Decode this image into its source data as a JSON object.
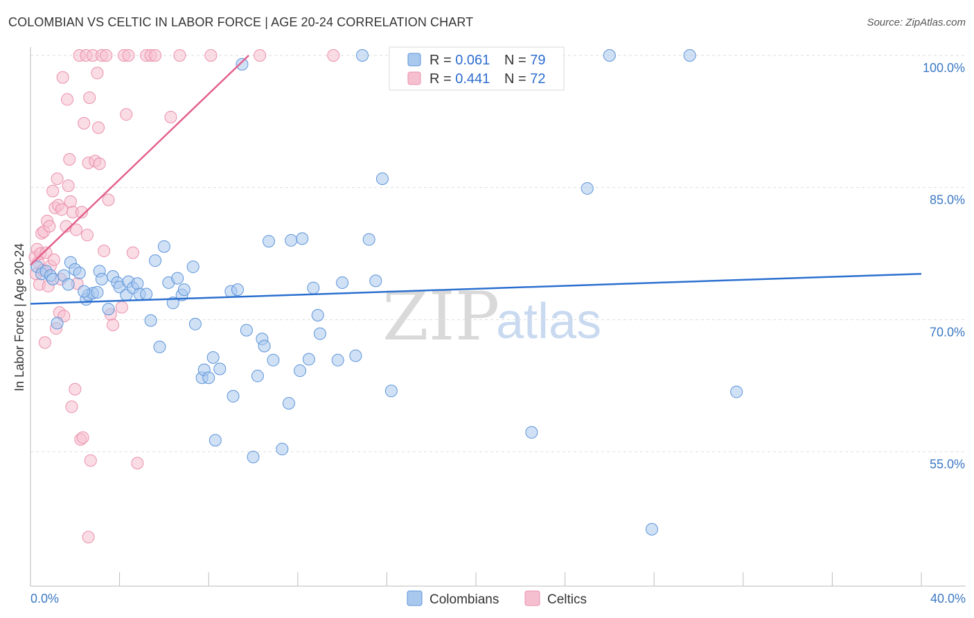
{
  "title": "COLOMBIAN VS CELTIC IN LABOR FORCE | AGE 20-24 CORRELATION CHART",
  "source": "Source: ZipAtlas.com",
  "watermark": {
    "zip": "ZIP",
    "atlas": "atlas"
  },
  "colors": {
    "blue_fill": "#a9c8ee",
    "blue_stroke": "#5b93d8",
    "blue_line": "#2a6fcf",
    "pink_fill": "#f6bfd0",
    "pink_stroke": "#ea8fac",
    "pink_line": "#e2608c",
    "grid": "#dddddd",
    "axis_text": "#3b78c4"
  },
  "legend": {
    "rows": [
      {
        "r_label": "R = ",
        "r_value": "0.061",
        "n_label": "N = ",
        "n_value": "79"
      },
      {
        "r_label": "R = ",
        "r_value": "0.441",
        "n_label": "N = ",
        "n_value": "72"
      }
    ]
  },
  "bottom_legend": [
    "Colombians",
    "Celtics"
  ],
  "chart_data": {
    "type": "scatter",
    "title": "COLOMBIAN VS CELTIC IN LABOR FORCE | AGE 20-24 CORRELATION CHART",
    "xlabel": "",
    "ylabel": "In Labor Force | Age 20-24",
    "xlim": [
      0,
      40
    ],
    "ylim": [
      40,
      102
    ],
    "x_ticks": [
      "0.0%",
      "40.0%"
    ],
    "y_ticks": [
      {
        "value": 100,
        "label": "100.0%"
      },
      {
        "value": 85,
        "label": "85.0%"
      },
      {
        "value": 70,
        "label": "70.0%"
      },
      {
        "value": 55,
        "label": "55.0%"
      }
    ],
    "series": [
      {
        "name": "Colombians",
        "R": 0.061,
        "N": 79,
        "trend": {
          "x": [
            0,
            40
          ],
          "y": [
            71.8,
            75.2
          ]
        },
        "points": [
          [
            0.3,
            76.0
          ],
          [
            0.5,
            75.2
          ],
          [
            0.7,
            75.5
          ],
          [
            0.9,
            75.0
          ],
          [
            1.0,
            74.6
          ],
          [
            1.5,
            75.0
          ],
          [
            1.7,
            74.0
          ],
          [
            1.8,
            76.5
          ],
          [
            2.0,
            75.7
          ],
          [
            2.2,
            75.3
          ],
          [
            2.5,
            72.3
          ],
          [
            2.6,
            72.8
          ],
          [
            2.8,
            73.0
          ],
          [
            3.1,
            75.5
          ],
          [
            3.2,
            74.6
          ],
          [
            3.5,
            71.2
          ],
          [
            3.7,
            74.9
          ],
          [
            3.9,
            74.2
          ],
          [
            4.0,
            73.7
          ],
          [
            4.3,
            72.8
          ],
          [
            4.4,
            74.3
          ],
          [
            4.6,
            73.6
          ],
          [
            4.8,
            74.1
          ],
          [
            4.9,
            72.9
          ],
          [
            5.2,
            72.9
          ],
          [
            5.4,
            69.9
          ],
          [
            5.6,
            76.7
          ],
          [
            5.8,
            66.9
          ],
          [
            6.0,
            78.3
          ],
          [
            6.2,
            74.2
          ],
          [
            6.4,
            71.9
          ],
          [
            6.6,
            74.7
          ],
          [
            6.8,
            72.8
          ],
          [
            6.9,
            73.4
          ],
          [
            7.3,
            76.0
          ],
          [
            7.4,
            69.5
          ],
          [
            7.7,
            63.4
          ],
          [
            7.8,
            64.3
          ],
          [
            8.0,
            63.4
          ],
          [
            8.2,
            65.7
          ],
          [
            8.3,
            56.3
          ],
          [
            8.5,
            64.4
          ],
          [
            9.0,
            73.2
          ],
          [
            9.1,
            61.3
          ],
          [
            9.3,
            73.4
          ],
          [
            9.5,
            99.0
          ],
          [
            9.7,
            68.8
          ],
          [
            10.0,
            54.4
          ],
          [
            10.2,
            63.6
          ],
          [
            10.4,
            67.8
          ],
          [
            10.5,
            67.0
          ],
          [
            10.7,
            78.9
          ],
          [
            10.9,
            65.4
          ],
          [
            11.3,
            55.3
          ],
          [
            11.6,
            60.5
          ],
          [
            11.7,
            79.0
          ],
          [
            12.1,
            64.2
          ],
          [
            12.2,
            79.2
          ],
          [
            12.5,
            65.5
          ],
          [
            12.7,
            73.6
          ],
          [
            12.9,
            70.5
          ],
          [
            13.0,
            68.4
          ],
          [
            13.8,
            65.4
          ],
          [
            14.0,
            74.2
          ],
          [
            14.6,
            65.9
          ],
          [
            14.9,
            100.0
          ],
          [
            15.2,
            79.1
          ],
          [
            15.5,
            74.4
          ],
          [
            15.8,
            86.0
          ],
          [
            16.2,
            61.9
          ],
          [
            22.5,
            57.2
          ],
          [
            25.0,
            84.9
          ],
          [
            26.0,
            100.0
          ],
          [
            27.9,
            46.2
          ],
          [
            29.6,
            100.0
          ],
          [
            31.7,
            61.8
          ],
          [
            1.2,
            69.6
          ],
          [
            2.4,
            73.2
          ],
          [
            3.0,
            73.1
          ]
        ]
      },
      {
        "name": "Celtics",
        "R": 0.441,
        "N": 72,
        "trend": {
          "x": [
            0,
            9.8
          ],
          "y": [
            76.2,
            100.0
          ]
        },
        "points": [
          [
            0.2,
            77.1
          ],
          [
            0.25,
            75.2
          ],
          [
            0.3,
            78.0
          ],
          [
            0.35,
            76.5
          ],
          [
            0.4,
            74.0
          ],
          [
            0.45,
            77.5
          ],
          [
            0.5,
            79.8
          ],
          [
            0.55,
            75.6
          ],
          [
            0.6,
            80.0
          ],
          [
            0.65,
            67.4
          ],
          [
            0.7,
            77.6
          ],
          [
            0.75,
            81.2
          ],
          [
            0.8,
            73.8
          ],
          [
            0.85,
            80.6
          ],
          [
            0.9,
            76.1
          ],
          [
            1.0,
            84.6
          ],
          [
            1.05,
            76.8
          ],
          [
            1.1,
            82.7
          ],
          [
            1.15,
            69.0
          ],
          [
            1.2,
            86.0
          ],
          [
            1.25,
            83.0
          ],
          [
            1.3,
            70.8
          ],
          [
            1.35,
            74.6
          ],
          [
            1.4,
            82.5
          ],
          [
            1.45,
            97.5
          ],
          [
            1.5,
            70.4
          ],
          [
            1.6,
            80.6
          ],
          [
            1.65,
            95.0
          ],
          [
            1.7,
            85.2
          ],
          [
            1.75,
            88.2
          ],
          [
            1.8,
            83.4
          ],
          [
            1.85,
            60.1
          ],
          [
            1.9,
            82.2
          ],
          [
            2.0,
            62.1
          ],
          [
            2.05,
            80.2
          ],
          [
            2.1,
            74.1
          ],
          [
            2.2,
            100.0
          ],
          [
            2.25,
            56.4
          ],
          [
            2.3,
            82.2
          ],
          [
            2.35,
            56.6
          ],
          [
            2.4,
            92.3
          ],
          [
            2.5,
            100.0
          ],
          [
            2.55,
            79.6
          ],
          [
            2.6,
            87.8
          ],
          [
            2.65,
            95.2
          ],
          [
            2.7,
            54.0
          ],
          [
            2.8,
            100.0
          ],
          [
            2.9,
            88.0
          ],
          [
            3.0,
            98.0
          ],
          [
            3.05,
            91.8
          ],
          [
            3.1,
            87.7
          ],
          [
            3.2,
            100.0
          ],
          [
            3.3,
            77.8
          ],
          [
            3.4,
            100.0
          ],
          [
            3.5,
            83.6
          ],
          [
            3.6,
            70.6
          ],
          [
            3.7,
            69.4
          ],
          [
            4.1,
            71.4
          ],
          [
            4.2,
            100.0
          ],
          [
            4.3,
            93.3
          ],
          [
            4.4,
            100.0
          ],
          [
            4.6,
            77.6
          ],
          [
            4.8,
            53.7
          ],
          [
            5.2,
            100.0
          ],
          [
            5.4,
            100.0
          ],
          [
            5.6,
            100.0
          ],
          [
            6.3,
            93.0
          ],
          [
            6.7,
            100.0
          ],
          [
            8.1,
            100.0
          ],
          [
            10.3,
            100.0
          ],
          [
            13.6,
            100.0
          ],
          [
            2.6,
            45.3
          ]
        ]
      }
    ]
  }
}
